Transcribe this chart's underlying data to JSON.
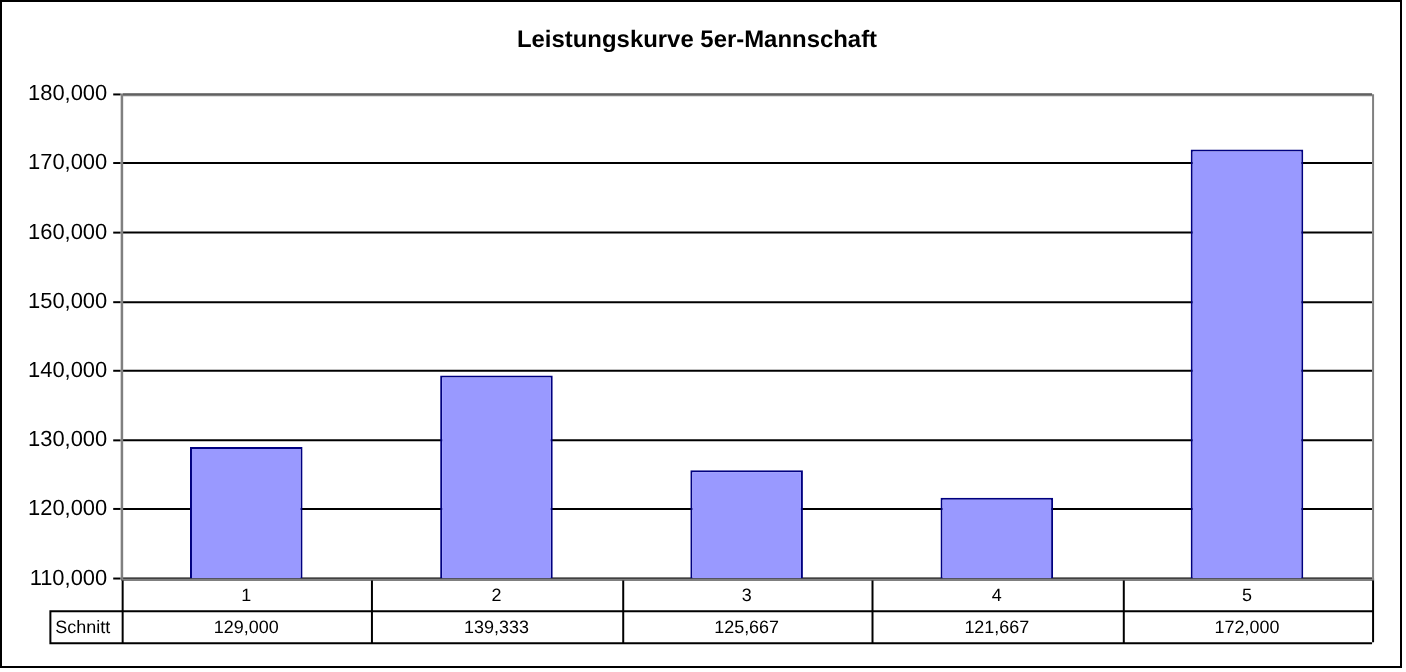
{
  "chart_data": {
    "type": "bar",
    "title": "Leistungskurve 5er-Mannschaft",
    "categories": [
      "1",
      "2",
      "3",
      "4",
      "5"
    ],
    "series": [
      {
        "name": "Schnitt",
        "color": "#9999ff",
        "values": [
          129000,
          139333,
          125667,
          121667,
          172000
        ],
        "value_labels": [
          "129,000",
          "139,333",
          "125,667",
          "121,667",
          "172,000"
        ]
      }
    ],
    "ylim": [
      110000,
      180000
    ],
    "yticks": [
      {
        "value": 110000,
        "label": "110,000"
      },
      {
        "value": 120000,
        "label": "120,000"
      },
      {
        "value": 130000,
        "label": "130,000"
      },
      {
        "value": 140000,
        "label": "140,000"
      },
      {
        "value": 150000,
        "label": "150,000"
      },
      {
        "value": 160000,
        "label": "160,000"
      },
      {
        "value": 170000,
        "label": "170,000"
      },
      {
        "value": 180000,
        "label": "180,000"
      }
    ],
    "grid": "y",
    "legend": false
  }
}
